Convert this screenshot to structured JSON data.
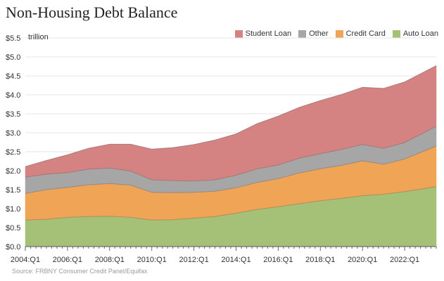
{
  "chart_data": {
    "type": "area",
    "stacked": true,
    "title": "Non-Housing Debt Balance",
    "unit": "trillion",
    "source": "Source: FRBNY Consumer Credit Panel/Equifax",
    "y_ticks": [
      "$0.0",
      "$0.5",
      "$1.0",
      "$1.5",
      "$2.0",
      "$2.5",
      "$3.0",
      "$3.5",
      "$4.0",
      "$4.5",
      "$5.0",
      "$5.5"
    ],
    "ylim": [
      0,
      5.5
    ],
    "x_ticks": [
      "2004:Q1",
      "2006:Q1",
      "2008:Q1",
      "2010:Q1",
      "2012:Q1",
      "2014:Q1",
      "2016:Q1",
      "2018:Q1",
      "2020:Q1",
      "2022:Q1"
    ],
    "x_start": 2004,
    "x_end": 2023.5,
    "grid": "horizontal",
    "legend_position": "top-right",
    "x": [
      2004,
      2005,
      2006,
      2007,
      2008,
      2009,
      2010,
      2011,
      2012,
      2013,
      2014,
      2015,
      2016,
      2017,
      2018,
      2019,
      2020,
      2021,
      2022,
      2023.5
    ],
    "series": [
      {
        "name": "Auto Loan",
        "color": "#a5c178",
        "values": [
          0.7,
          0.72,
          0.77,
          0.79,
          0.8,
          0.77,
          0.7,
          0.71,
          0.75,
          0.79,
          0.88,
          0.98,
          1.05,
          1.13,
          1.21,
          1.27,
          1.34,
          1.38,
          1.45,
          1.58
        ]
      },
      {
        "name": "Credit Card",
        "color": "#f0a455",
        "values": [
          0.7,
          0.78,
          0.79,
          0.84,
          0.86,
          0.85,
          0.73,
          0.71,
          0.68,
          0.67,
          0.67,
          0.71,
          0.74,
          0.81,
          0.84,
          0.87,
          0.92,
          0.79,
          0.86,
          1.07
        ]
      },
      {
        "name": "Other",
        "color": "#a6a6a6",
        "values": [
          0.43,
          0.41,
          0.39,
          0.41,
          0.41,
          0.37,
          0.33,
          0.32,
          0.3,
          0.3,
          0.33,
          0.36,
          0.36,
          0.39,
          0.4,
          0.42,
          0.43,
          0.42,
          0.43,
          0.52
        ]
      },
      {
        "name": "Student Loan",
        "color": "#d58283",
        "values": [
          0.28,
          0.36,
          0.47,
          0.55,
          0.63,
          0.71,
          0.81,
          0.87,
          0.96,
          1.05,
          1.09,
          1.19,
          1.29,
          1.34,
          1.4,
          1.45,
          1.51,
          1.58,
          1.6,
          1.6
        ]
      }
    ]
  }
}
